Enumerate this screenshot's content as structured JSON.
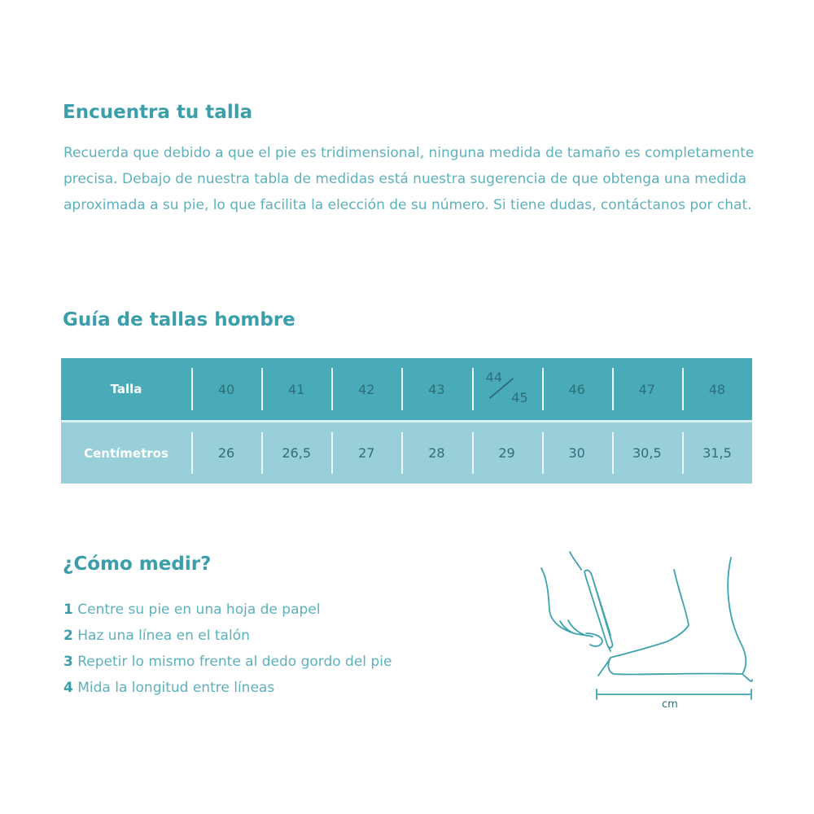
{
  "intro": {
    "title": "Encuentra tu talla",
    "text": "Recuerda que debido a que el pie es tridimensional, ninguna medida de tamaño es completamente precisa. Debajo de nuestra tabla de medidas está nuestra sugerencia de que obtenga una medida aproximada a su pie, lo que facilita la elección de su número. Si tiene dudas, contáctanos por chat."
  },
  "guide": {
    "title": "Guía de tallas hombre",
    "row_labels": [
      "Talla",
      "Centímetros"
    ],
    "sizes": [
      "40",
      "41",
      "42",
      "43",
      "44/45",
      "46",
      "47",
      "48"
    ],
    "size_fraction": {
      "top": "44",
      "bottom": "45"
    },
    "cm": [
      "26",
      "26,5",
      "27",
      "28",
      "29",
      "30",
      "30,5",
      "31,5"
    ],
    "colors": {
      "header": "#4aabb8",
      "row": "#98cfd8",
      "accent": "#3b9eab"
    }
  },
  "measure": {
    "title": "¿Cómo medir?",
    "steps": [
      {
        "n": "1",
        "text": "Centre su pie en una hoja de papel"
      },
      {
        "n": "2",
        "text": "Haz una línea en el talón"
      },
      {
        "n": "3",
        "text": "Repetir lo mismo frente al dedo gordo del pie"
      },
      {
        "n": "4",
        "text": "Mida la longitud entre líneas"
      }
    ],
    "unit_label": "cm"
  }
}
